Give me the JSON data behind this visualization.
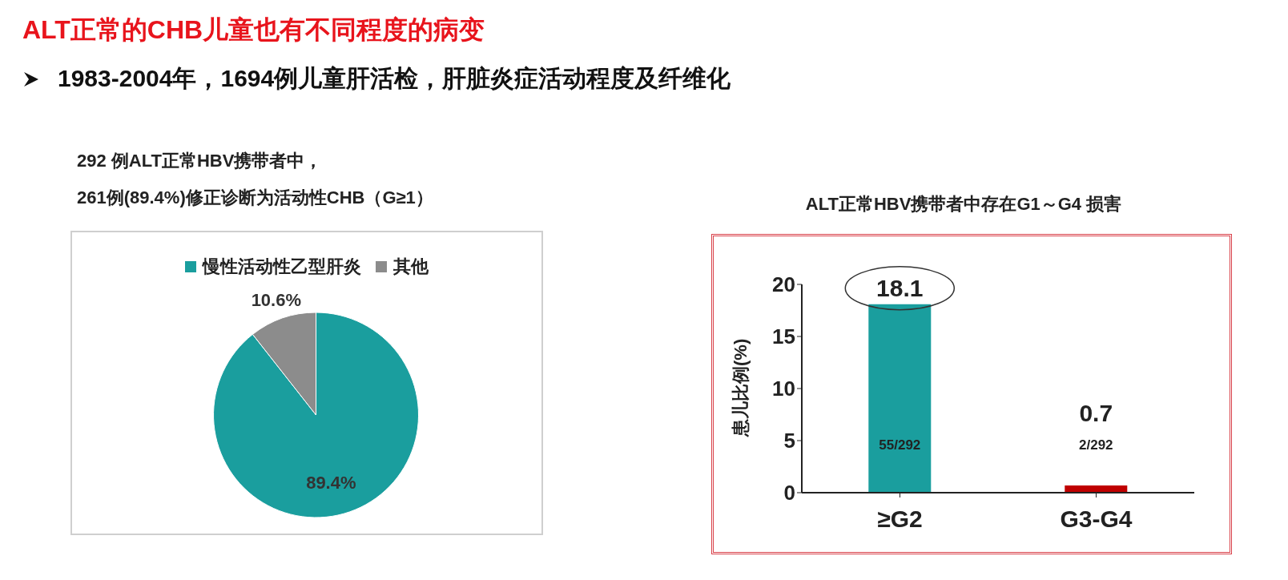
{
  "chart_data": [
    {
      "type": "other",
      "title": "ALT正常的CHB儿童也有不同程度的病变",
      "subtitle": "1983-2004年，1694例儿童肝活检，肝脏炎症活动程度及纤维化"
    },
    {
      "type": "pie",
      "title": "292 例ALT正常HBV携带者中，",
      "subtitle": "261例(89.4%)修正诊断为活动性CHB（G≥1）",
      "categories": [
        "慢性活动性乙型肝炎",
        "其他"
      ],
      "values": [
        89.4,
        10.6
      ],
      "colors": [
        "#1a9e9e",
        "#8c8c8c"
      ],
      "value_labels": [
        "89.4%",
        "10.6%"
      ],
      "legend": "top"
    },
    {
      "type": "bar",
      "title": "ALT正常HBV携带者中存在G1～G4 损害",
      "ylabel": "患儿比例(%)",
      "categories": [
        "≥G2",
        "G3-G4"
      ],
      "values": [
        18.1,
        0.7
      ],
      "colors": [
        "#1a9e9e",
        "#c00000"
      ],
      "ylim": [
        0,
        20
      ],
      "yticks": [
        0,
        5,
        10,
        15,
        20
      ],
      "data_labels": true,
      "annotations": [
        "55/292",
        "2/292"
      ]
    }
  ]
}
